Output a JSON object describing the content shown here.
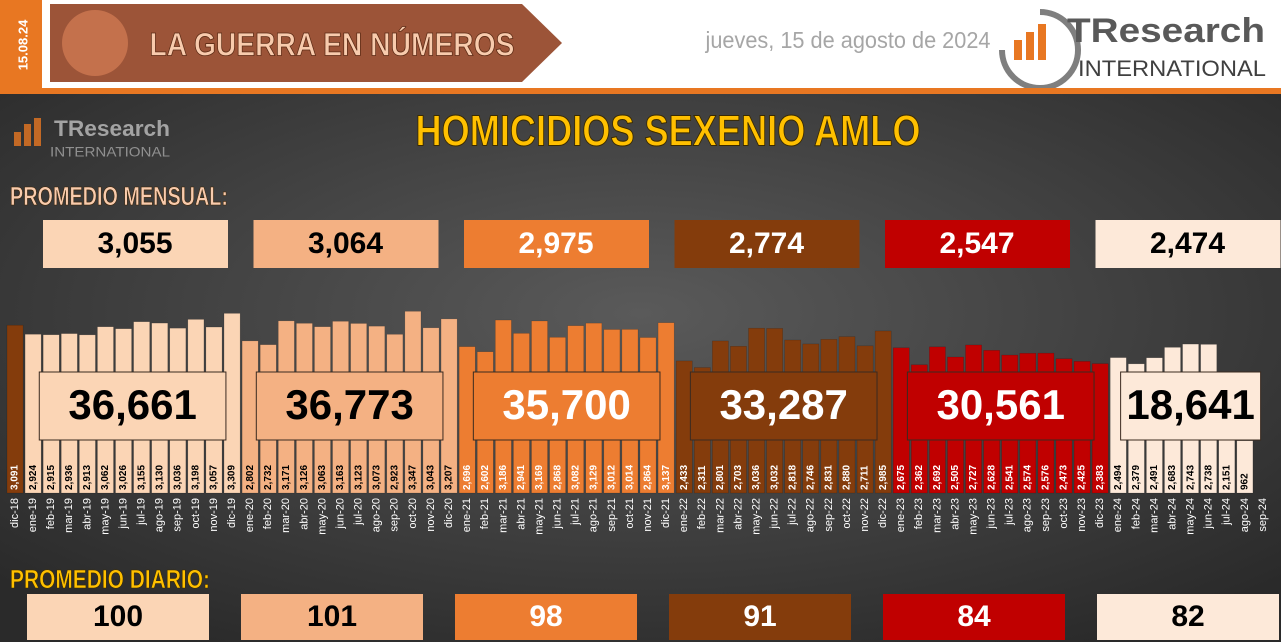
{
  "header": {
    "date": "15.08.24",
    "section": "LA GUERRA EN NÚMEROS",
    "dateline": "jueves, 15 de agosto de 2024",
    "logo": {
      "brand": "TResearch",
      "tagline": "INTERNATIONAL"
    }
  },
  "chart_data": {
    "type": "bar",
    "title": "HOMICIDIOS SEXENIO AMLO",
    "monthly_avg_title": "PROMEDIO MENSUAL:",
    "daily_avg_title": "PROMEDIO DIARIO:",
    "ylim": [
      0,
      3500
    ],
    "series": [
      {
        "color": "#843c0c",
        "categories": [
          "dic-18"
        ],
        "values": [
          3091
        ],
        "value_labels": [
          "3,091"
        ]
      },
      {
        "color": "#fbd5b5",
        "categories": [
          "ene-19",
          "feb-19",
          "mar-19",
          "abr-19",
          "may-19",
          "jun-19",
          "jul-19",
          "ago-19",
          "sep-19",
          "oct-19",
          "nov-19",
          "dic-19"
        ],
        "values": [
          2924,
          2915,
          2936,
          2913,
          3062,
          3026,
          3155,
          3130,
          3036,
          3198,
          3057,
          3309
        ],
        "value_labels": [
          "2,924",
          "2,915",
          "2,936",
          "2,913",
          "3,062",
          "3,026",
          "3,155",
          "3,130",
          "3,036",
          "3,198",
          "3,057",
          "3,309"
        ],
        "total": 36661,
        "total_label": "36,661",
        "monthly_avg": 3055,
        "monthly_avg_label": "3,055",
        "daily_avg": 100
      },
      {
        "color": "#f4b183",
        "categories": [
          "ene-20",
          "feb-20",
          "mar-20",
          "abr-20",
          "may-20",
          "jun-20",
          "jul-20",
          "ago-20",
          "sep-20",
          "oct-20",
          "nov-20",
          "dic-20"
        ],
        "values": [
          2802,
          2732,
          3171,
          3126,
          3063,
          3163,
          3123,
          3073,
          2923,
          3347,
          3043,
          3207
        ],
        "value_labels": [
          "2,802",
          "2,732",
          "3,171",
          "3,126",
          "3,063",
          "3,163",
          "3,123",
          "3,073",
          "2,923",
          "3,347",
          "3,043",
          "3,207"
        ],
        "total": 36773,
        "total_label": "36,773",
        "monthly_avg": 3064,
        "monthly_avg_label": "3,064",
        "daily_avg": 101
      },
      {
        "color": "#ed7d31",
        "categories": [
          "ene-21",
          "feb-21",
          "mar-21",
          "abr-21",
          "may-21",
          "jun-21",
          "jul-21",
          "ago-21",
          "sep-21",
          "oct-21",
          "nov-21",
          "dic-21"
        ],
        "values": [
          2696,
          2602,
          3186,
          2941,
          3169,
          2868,
          3082,
          3129,
          3012,
          3014,
          2864,
          3137
        ],
        "value_labels": [
          "2,696",
          "2,602",
          "3,186",
          "2,941",
          "3,169",
          "2,868",
          "3,082",
          "3,129",
          "3,012",
          "3,014",
          "2,864",
          "3,137"
        ],
        "total": 35700,
        "total_label": "35,700",
        "monthly_avg": 2975,
        "monthly_avg_label": "2,975",
        "daily_avg": 98
      },
      {
        "color": "#843c0c",
        "categories": [
          "ene-22",
          "feb-22",
          "mar-22",
          "abr-22",
          "may-22",
          "jun-22",
          "jul-22",
          "ago-22",
          "sep-22",
          "oct-22",
          "nov-22",
          "dic-22"
        ],
        "values": [
          2433,
          2311,
          2801,
          2703,
          3036,
          3032,
          2818,
          2746,
          2831,
          2880,
          2711,
          2985
        ],
        "value_labels": [
          "2,433",
          "2,311",
          "2,801",
          "2,703",
          "3,036",
          "3,032",
          "2,818",
          "2,746",
          "2,831",
          "2,880",
          "2,711",
          "2,985"
        ],
        "total": 33287,
        "total_label": "33,287",
        "monthly_avg": 2774,
        "monthly_avg_label": "2,774",
        "daily_avg": 91
      },
      {
        "color": "#c00000",
        "categories": [
          "ene-23",
          "feb-23",
          "mar-23",
          "abr-23",
          "may-23",
          "jun-23",
          "jul-23",
          "ago-23",
          "sep-23",
          "oct-23",
          "nov-23",
          "dic-23"
        ],
        "values": [
          2675,
          2362,
          2692,
          2505,
          2727,
          2628,
          2541,
          2574,
          2576,
          2473,
          2425,
          2383
        ],
        "value_labels": [
          "2,675",
          "2,362",
          "2,692",
          "2,505",
          "2,727",
          "2,628",
          "2,541",
          "2,574",
          "2,576",
          "2,473",
          "2,425",
          "2,383"
        ],
        "total": 30561,
        "total_label": "30,561",
        "monthly_avg": 2547,
        "monthly_avg_label": "2,547",
        "daily_avg": 84
      },
      {
        "color": "#fde9d9",
        "categories": [
          "ene-24",
          "feb-24",
          "mar-24",
          "abr-24",
          "may-24",
          "jun-24",
          "jul-24",
          "ago-24",
          "sep-24"
        ],
        "values": [
          2494,
          2379,
          2491,
          2683,
          2743,
          2738,
          2151,
          962,
          null
        ],
        "value_labels": [
          "2,494",
          "2,379",
          "2,491",
          "2,683",
          "2,743",
          "2,738",
          "2,151",
          "962",
          null
        ],
        "total": 18641,
        "total_label": "18,641",
        "monthly_avg": 2474,
        "monthly_avg_label": "2,474",
        "daily_avg": 82
      }
    ]
  }
}
